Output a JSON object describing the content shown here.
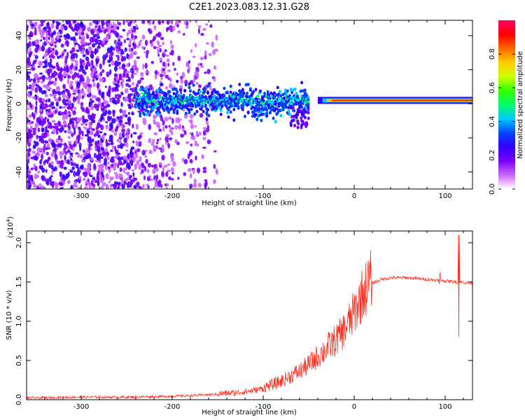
{
  "title": "C2E1.2023.083.12.31.G28",
  "chart_data": [
    {
      "type": "heatmap",
      "xlabel": "Height of straight line (km)",
      "ylabel": "Frequency (Hz)",
      "xlim": [
        -360,
        130
      ],
      "ylim": [
        -50,
        49
      ],
      "x_ticks": [
        -300,
        -200,
        -100,
        0,
        100
      ],
      "y_ticks": [
        -40,
        -20,
        0,
        20,
        40
      ],
      "colorbar": {
        "label": "Normalized spectral amplitude",
        "range": [
          0,
          1
        ],
        "ticks": [
          "0.0",
          "0.2",
          "0.4",
          "0.6",
          "0.8"
        ],
        "colors": [
          "#ffffff",
          "#cc66ff",
          "#7a00ff",
          "#3300ff",
          "#0044ff",
          "#00ccff",
          "#00ff66",
          "#33ff00",
          "#ccff00",
          "#ffcc00",
          "#ff6600",
          "#ff0000",
          "#ff0066"
        ]
      },
      "features": {
        "carrier_line_hz": 2,
        "noise_region_x": [
          -360,
          -150
        ],
        "signal_band_x": [
          -240,
          -50
        ],
        "strong_line_x": [
          -40,
          130
        ]
      }
    },
    {
      "type": "line",
      "xlabel": "Height of straight line (km)",
      "ylabel": "SNR (10 * v/v)",
      "exponent_label": "(x10",
      "exponent_power": "4",
      "exponent_close": ")",
      "xlim": [
        -360,
        130
      ],
      "ylim": [
        0,
        2.15
      ],
      "x_ticks": [
        -300,
        -200,
        -100,
        0,
        100
      ],
      "y_ticks": [
        "0.0",
        "0.5",
        "1.0",
        "1.5",
        "2.0"
      ],
      "series": [
        {
          "color": "#ff2a1a",
          "x": [
            -360,
            -300,
            -250,
            -200,
            -160,
            -130,
            -110,
            -100,
            -90,
            -80,
            -70,
            -60,
            -50,
            -40,
            -30,
            -20,
            -10,
            0,
            10,
            20,
            30,
            40,
            50,
            60,
            70,
            80,
            90,
            100,
            110,
            120,
            130
          ],
          "y": [
            0.02,
            0.03,
            0.03,
            0.04,
            0.06,
            0.08,
            0.11,
            0.14,
            0.18,
            0.22,
            0.28,
            0.34,
            0.42,
            0.52,
            0.62,
            0.72,
            0.85,
            1.05,
            1.3,
            1.48,
            1.53,
            1.55,
            1.55,
            1.55,
            1.54,
            1.53,
            1.52,
            1.51,
            1.5,
            1.49,
            1.48
          ]
        }
      ]
    }
  ]
}
